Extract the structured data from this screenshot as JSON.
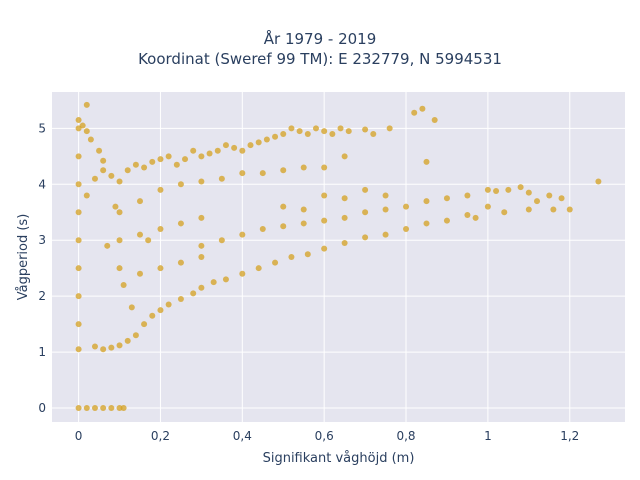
{
  "chart_data": {
    "type": "scatter",
    "title": "År 1979 - 2019",
    "subtitle": "Koordinat (Sweref 99 TM): E 232779, N 5994531",
    "xlabel": "Signifikant våghöjd (m)",
    "ylabel": "Vågperiod (s)",
    "xlim": [
      -0.065,
      1.335
    ],
    "ylim": [
      -0.25,
      5.65
    ],
    "x_ticks": [
      0,
      0.2,
      0.4,
      0.6,
      0.8,
      1,
      1.2
    ],
    "x_tick_labels": [
      "0",
      "0,2",
      "0,4",
      "0,6",
      "0,8",
      "1",
      "1,2"
    ],
    "y_ticks": [
      0,
      1,
      2,
      3,
      4,
      5
    ],
    "y_tick_labels": [
      "0",
      "1",
      "2",
      "3",
      "4",
      "5"
    ],
    "grid": true,
    "legend": "none",
    "colors": {
      "marker": "#d4a020",
      "plot_bg": "#e5e5ef",
      "grid": "#ffffff",
      "text": "#2a3f5f"
    },
    "series": [
      {
        "points": [
          [
            0.0,
            0.0
          ],
          [
            0.02,
            0.0
          ],
          [
            0.04,
            0.0
          ],
          [
            0.06,
            0.0
          ],
          [
            0.08,
            0.0
          ],
          [
            0.1,
            0.0
          ],
          [
            0.11,
            0.0
          ],
          [
            0.0,
            1.05
          ],
          [
            0.0,
            1.5
          ],
          [
            0.0,
            2.0
          ],
          [
            0.0,
            2.5
          ],
          [
            0.0,
            3.0
          ],
          [
            0.0,
            3.5
          ],
          [
            0.0,
            4.0
          ],
          [
            0.0,
            4.5
          ],
          [
            0.0,
            5.0
          ],
          [
            0.0,
            5.15
          ],
          [
            0.01,
            5.05
          ],
          [
            0.02,
            4.95
          ],
          [
            0.02,
            5.42
          ],
          [
            0.03,
            4.8
          ],
          [
            0.05,
            4.6
          ],
          [
            0.06,
            4.42
          ],
          [
            0.04,
            1.1
          ],
          [
            0.06,
            1.05
          ],
          [
            0.08,
            1.08
          ],
          [
            0.1,
            1.12
          ],
          [
            0.12,
            1.2
          ],
          [
            0.14,
            1.3
          ],
          [
            0.16,
            1.5
          ],
          [
            0.18,
            1.65
          ],
          [
            0.2,
            1.75
          ],
          [
            0.02,
            3.8
          ],
          [
            0.04,
            4.1
          ],
          [
            0.06,
            4.25
          ],
          [
            0.08,
            4.15
          ],
          [
            0.1,
            4.05
          ],
          [
            0.12,
            4.25
          ],
          [
            0.14,
            4.35
          ],
          [
            0.16,
            4.3
          ],
          [
            0.18,
            4.4
          ],
          [
            0.2,
            4.45
          ],
          [
            0.22,
            4.5
          ],
          [
            0.24,
            4.35
          ],
          [
            0.26,
            4.45
          ],
          [
            0.28,
            4.6
          ],
          [
            0.3,
            4.5
          ],
          [
            0.32,
            4.55
          ],
          [
            0.34,
            4.6
          ],
          [
            0.36,
            4.7
          ],
          [
            0.38,
            4.65
          ],
          [
            0.4,
            4.6
          ],
          [
            0.42,
            4.7
          ],
          [
            0.44,
            4.75
          ],
          [
            0.46,
            4.8
          ],
          [
            0.48,
            4.85
          ],
          [
            0.5,
            4.9
          ],
          [
            0.52,
            5.0
          ],
          [
            0.54,
            4.95
          ],
          [
            0.56,
            4.9
          ],
          [
            0.58,
            5.0
          ],
          [
            0.6,
            4.95
          ],
          [
            0.62,
            4.9
          ],
          [
            0.64,
            5.0
          ],
          [
            0.66,
            4.95
          ],
          [
            0.7,
            4.98
          ],
          [
            0.72,
            4.9
          ],
          [
            0.76,
            5.0
          ],
          [
            0.82,
            5.28
          ],
          [
            0.84,
            5.35
          ],
          [
            0.87,
            5.15
          ],
          [
            0.85,
            4.4
          ],
          [
            0.1,
            3.5
          ],
          [
            0.15,
            3.7
          ],
          [
            0.2,
            3.9
          ],
          [
            0.25,
            4.0
          ],
          [
            0.3,
            4.05
          ],
          [
            0.35,
            4.1
          ],
          [
            0.4,
            4.2
          ],
          [
            0.45,
            4.2
          ],
          [
            0.5,
            4.25
          ],
          [
            0.55,
            4.3
          ],
          [
            0.6,
            4.3
          ],
          [
            0.65,
            4.5
          ],
          [
            0.1,
            2.5
          ],
          [
            0.1,
            3.0
          ],
          [
            0.15,
            2.4
          ],
          [
            0.15,
            3.1
          ],
          [
            0.2,
            2.5
          ],
          [
            0.2,
            3.2
          ],
          [
            0.25,
            2.6
          ],
          [
            0.25,
            3.3
          ],
          [
            0.3,
            2.7
          ],
          [
            0.3,
            3.4
          ],
          [
            0.22,
            1.85
          ],
          [
            0.25,
            1.95
          ],
          [
            0.28,
            2.05
          ],
          [
            0.3,
            2.15
          ],
          [
            0.33,
            2.25
          ],
          [
            0.36,
            2.3
          ],
          [
            0.4,
            2.4
          ],
          [
            0.44,
            2.5
          ],
          [
            0.48,
            2.6
          ],
          [
            0.52,
            2.7
          ],
          [
            0.56,
            2.75
          ],
          [
            0.6,
            2.85
          ],
          [
            0.65,
            2.95
          ],
          [
            0.7,
            3.05
          ],
          [
            0.75,
            3.1
          ],
          [
            0.8,
            3.2
          ],
          [
            0.85,
            3.3
          ],
          [
            0.9,
            3.35
          ],
          [
            0.95,
            3.45
          ],
          [
            0.3,
            2.9
          ],
          [
            0.35,
            3.0
          ],
          [
            0.4,
            3.1
          ],
          [
            0.45,
            3.2
          ],
          [
            0.5,
            3.25
          ],
          [
            0.55,
            3.3
          ],
          [
            0.6,
            3.35
          ],
          [
            0.65,
            3.4
          ],
          [
            0.7,
            3.5
          ],
          [
            0.75,
            3.55
          ],
          [
            0.8,
            3.6
          ],
          [
            0.85,
            3.7
          ],
          [
            0.9,
            3.75
          ],
          [
            0.95,
            3.8
          ],
          [
            1.0,
            3.9
          ],
          [
            1.02,
            3.88
          ],
          [
            0.5,
            3.6
          ],
          [
            0.55,
            3.55
          ],
          [
            0.6,
            3.8
          ],
          [
            0.65,
            3.75
          ],
          [
            0.7,
            3.9
          ],
          [
            0.75,
            3.8
          ],
          [
            1.05,
            3.9
          ],
          [
            1.08,
            3.95
          ],
          [
            1.1,
            3.85
          ],
          [
            1.12,
            3.7
          ],
          [
            1.15,
            3.8
          ],
          [
            1.16,
            3.55
          ],
          [
            1.18,
            3.75
          ],
          [
            1.2,
            3.55
          ],
          [
            1.04,
            3.5
          ],
          [
            1.1,
            3.55
          ],
          [
            0.97,
            3.4
          ],
          [
            1.0,
            3.6
          ],
          [
            1.27,
            4.05
          ],
          [
            0.07,
            2.9
          ],
          [
            0.09,
            3.6
          ],
          [
            0.11,
            2.2
          ],
          [
            0.13,
            1.8
          ],
          [
            0.17,
            3.0
          ]
        ]
      }
    ]
  }
}
